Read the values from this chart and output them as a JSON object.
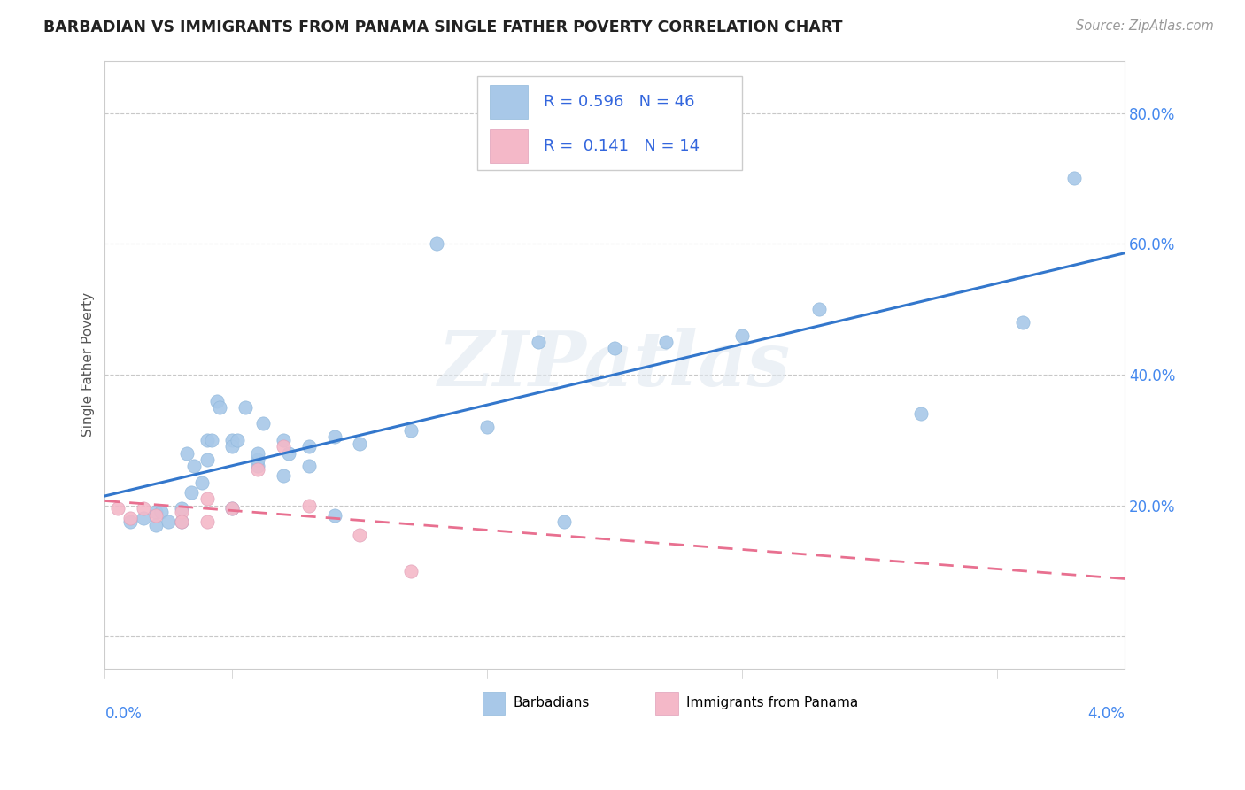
{
  "title": "BARBADIAN VS IMMIGRANTS FROM PANAMA SINGLE FATHER POVERTY CORRELATION CHART",
  "source": "Source: ZipAtlas.com",
  "ylabel": "Single Father Poverty",
  "y_tick_vals": [
    0.0,
    0.2,
    0.4,
    0.6,
    0.8
  ],
  "y_tick_labels": [
    "",
    "20.0%",
    "40.0%",
    "60.0%",
    "80.0%"
  ],
  "x_lim": [
    0.0,
    0.04
  ],
  "y_lim": [
    -0.05,
    0.88
  ],
  "blue_color": "#a8c8e8",
  "pink_color": "#f4b8c8",
  "blue_line_color": "#3377cc",
  "pink_line_color": "#e87090",
  "pink_line_dash": [
    6,
    4
  ],
  "watermark_text": "ZIPatlas",
  "grid_color": "#c8c8c8",
  "bg_color": "#ffffff",
  "source_color": "#999999",
  "legend_color": "#3366dd",
  "barbadian_x": [
    0.001,
    0.0015,
    0.002,
    0.002,
    0.0022,
    0.0025,
    0.003,
    0.003,
    0.0032,
    0.0034,
    0.0035,
    0.0038,
    0.004,
    0.004,
    0.0042,
    0.0044,
    0.0045,
    0.005,
    0.005,
    0.005,
    0.0052,
    0.0055,
    0.006,
    0.006,
    0.006,
    0.0062,
    0.007,
    0.007,
    0.0072,
    0.008,
    0.008,
    0.009,
    0.009,
    0.01,
    0.012,
    0.013,
    0.015,
    0.017,
    0.018,
    0.02,
    0.022,
    0.025,
    0.028,
    0.032,
    0.036,
    0.038
  ],
  "barbadian_y": [
    0.175,
    0.18,
    0.19,
    0.17,
    0.19,
    0.175,
    0.195,
    0.175,
    0.28,
    0.22,
    0.26,
    0.235,
    0.27,
    0.3,
    0.3,
    0.36,
    0.35,
    0.195,
    0.3,
    0.29,
    0.3,
    0.35,
    0.26,
    0.27,
    0.28,
    0.325,
    0.245,
    0.3,
    0.28,
    0.29,
    0.26,
    0.185,
    0.305,
    0.295,
    0.315,
    0.6,
    0.32,
    0.45,
    0.175,
    0.44,
    0.45,
    0.46,
    0.5,
    0.34,
    0.48,
    0.7
  ],
  "panama_x": [
    0.0005,
    0.001,
    0.0015,
    0.002,
    0.003,
    0.003,
    0.004,
    0.004,
    0.005,
    0.006,
    0.007,
    0.008,
    0.01,
    0.012
  ],
  "panama_y": [
    0.195,
    0.18,
    0.195,
    0.185,
    0.19,
    0.175,
    0.21,
    0.175,
    0.195,
    0.255,
    0.29,
    0.2,
    0.155,
    0.1
  ]
}
